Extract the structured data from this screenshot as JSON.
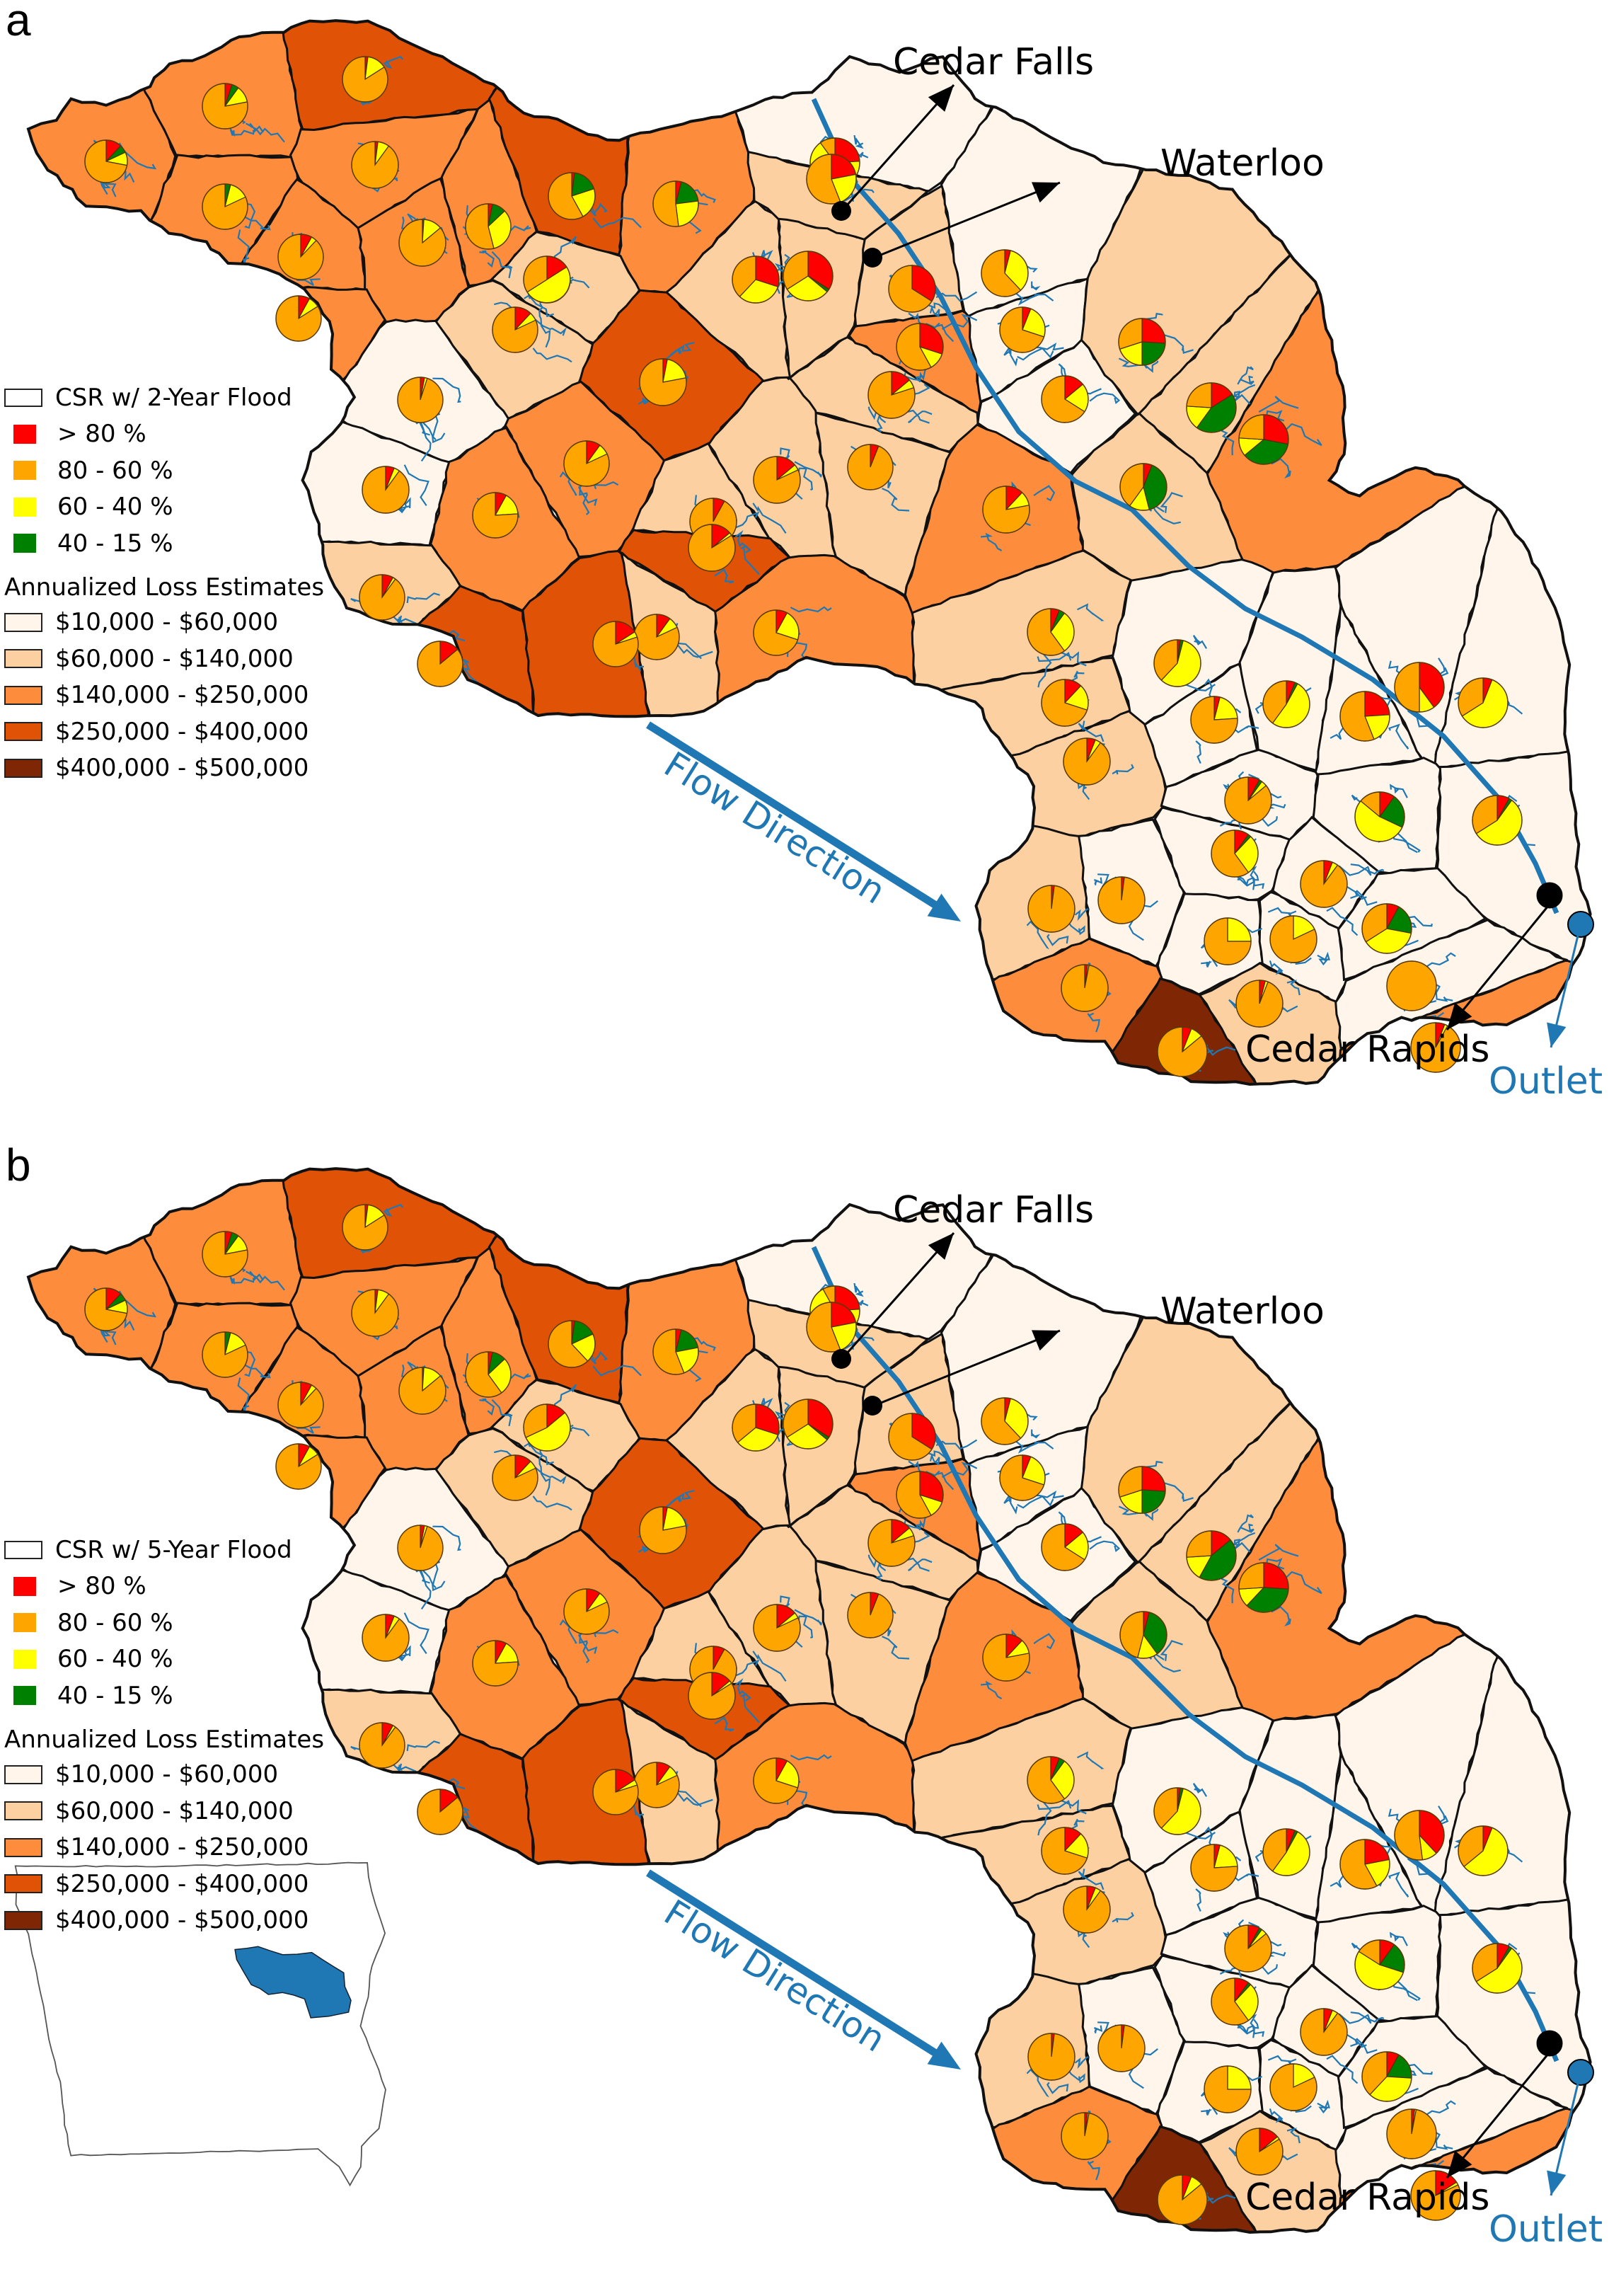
{
  "figure": {
    "colors": {
      "csr": {
        "gt80": "#ff0000",
        "80_60": "#ffa500",
        "60_40": "#ffff00",
        "40_15": "#008000"
      },
      "loss": [
        "#fff5eb",
        "#fdd0a2",
        "#fd8d3c",
        "#e05206",
        "#7f2704"
      ],
      "river": "#1f78b4",
      "outlet": "#1f78b4",
      "city": "#000000",
      "boundary": "#111111",
      "inset_basin": "#1f78b4"
    },
    "legend": {
      "csr_classes": [
        {
          "key": "gt80",
          "label": "> 80 %"
        },
        {
          "key": "80_60",
          "label": "80 - 60 %"
        },
        {
          "key": "60_40",
          "label": "60 - 40 %"
        },
        {
          "key": "40_15",
          "label": "40 - 15 %"
        }
      ],
      "loss_heading": "Annualized Loss Estimates",
      "loss_classes": [
        "$10,000 - $60,000",
        "$60,000 - $140,000",
        "$140,000 - $250,000",
        "$250,000 - $400,000",
        "$400,000 - $500,000"
      ]
    },
    "labels": {
      "cedar_falls": "Cedar Falls",
      "waterloo": "Waterloo",
      "cedar_rapids": "Cedar Rapids",
      "outlet": "Outlet",
      "flow_direction": "Flow Direction"
    },
    "panels": [
      {
        "letter": "a",
        "legend_title": "CSR w/ 2-Year Flood",
        "has_inset": false
      },
      {
        "letter": "b",
        "legend_title": "CSR w/ 5-Year Flood",
        "has_inset": true
      }
    ]
  },
  "subbasins": [
    {
      "id": 1,
      "loss": 2,
      "pie_a": [
        0.12,
        0.72,
        0.1,
        0.06
      ],
      "pie_b": [
        0.12,
        0.72,
        0.1,
        0.06
      ]
    },
    {
      "id": 2,
      "loss": 2,
      "pie_a": [
        0.05,
        0.78,
        0.12,
        0.05
      ],
      "pie_b": [
        0.05,
        0.78,
        0.12,
        0.05
      ]
    },
    {
      "id": 3,
      "loss": 3,
      "pie_a": [
        0.02,
        0.84,
        0.14,
        0.0
      ],
      "pie_b": [
        0.02,
        0.84,
        0.14,
        0.0
      ]
    },
    {
      "id": 4,
      "loss": 2,
      "pie_a": [
        0.0,
        0.82,
        0.14,
        0.04
      ],
      "pie_b": [
        0.0,
        0.82,
        0.14,
        0.04
      ]
    },
    {
      "id": 5,
      "loss": 2,
      "pie_a": [
        0.02,
        0.9,
        0.08,
        0.0
      ],
      "pie_b": [
        0.02,
        0.9,
        0.08,
        0.0
      ]
    },
    {
      "id": 6,
      "loss": 2,
      "pie_a": [
        0.03,
        0.54,
        0.33,
        0.1
      ],
      "pie_b": [
        0.03,
        0.6,
        0.27,
        0.1
      ]
    },
    {
      "id": 7,
      "loss": 3,
      "pie_a": [
        0.02,
        0.58,
        0.22,
        0.18
      ],
      "pie_b": [
        0.02,
        0.62,
        0.2,
        0.16
      ]
    },
    {
      "id": 8,
      "loss": 2,
      "pie_a": [
        0.04,
        0.52,
        0.25,
        0.19
      ],
      "pie_b": [
        0.04,
        0.56,
        0.22,
        0.18
      ]
    },
    {
      "id": 9,
      "loss": 2,
      "pie_a": [
        0.08,
        0.88,
        0.04,
        0.0
      ],
      "pie_b": [
        0.08,
        0.88,
        0.04,
        0.0
      ]
    },
    {
      "id": 10,
      "loss": 2,
      "pie_a": [
        0.0,
        0.86,
        0.13,
        0.01
      ],
      "pie_b": [
        0.0,
        0.86,
        0.13,
        0.01
      ]
    },
    {
      "id": 11,
      "loss": 2,
      "pie_a": [
        0.08,
        0.84,
        0.08,
        0.0
      ],
      "pie_b": [
        0.08,
        0.84,
        0.08,
        0.0
      ]
    },
    {
      "id": 12,
      "loss": 1,
      "pie_a": [
        0.16,
        0.34,
        0.5,
        0.0
      ],
      "pie_b": [
        0.14,
        0.32,
        0.54,
        0.0
      ]
    },
    {
      "id": 13,
      "loss": 1,
      "pie_a": [
        0.12,
        0.82,
        0.06,
        0.0
      ],
      "pie_b": [
        0.12,
        0.82,
        0.06,
        0.0
      ]
    },
    {
      "id": 14,
      "loss": 0,
      "pie_a": [
        0.03,
        0.95,
        0.02,
        0.0
      ],
      "pie_b": [
        0.03,
        0.95,
        0.02,
        0.0
      ]
    },
    {
      "id": 15,
      "loss": 3,
      "pie_a": [
        0.03,
        0.78,
        0.19,
        0.0
      ],
      "pie_b": [
        0.03,
        0.78,
        0.19,
        0.0
      ]
    },
    {
      "id": 16,
      "loss": 0,
      "pie_a": [
        0.06,
        0.9,
        0.04,
        0.0
      ],
      "pie_b": [
        0.06,
        0.9,
        0.04,
        0.0
      ]
    },
    {
      "id": 17,
      "loss": 2,
      "pie_a": [
        0.1,
        0.82,
        0.08,
        0.0
      ],
      "pie_b": [
        0.1,
        0.82,
        0.08,
        0.0
      ]
    },
    {
      "id": 18,
      "loss": 2,
      "pie_a": [
        0.08,
        0.76,
        0.16,
        0.0
      ],
      "pie_b": [
        0.08,
        0.76,
        0.16,
        0.0
      ]
    },
    {
      "id": 19,
      "loss": 1,
      "pie_a": [
        0.08,
        0.9,
        0.02,
        0.0
      ],
      "pie_b": [
        0.08,
        0.9,
        0.02,
        0.0
      ]
    },
    {
      "id": 20,
      "loss": 1,
      "pie_a": [
        0.14,
        0.8,
        0.06,
        0.0
      ],
      "pie_b": [
        0.14,
        0.8,
        0.06,
        0.0
      ]
    },
    {
      "id": 21,
      "loss": 1,
      "pie_a": [
        0.08,
        0.92,
        0.0,
        0.0
      ],
      "pie_b": [
        0.08,
        0.92,
        0.0,
        0.0
      ]
    },
    {
      "id": 22,
      "loss": 1,
      "pie_a": [
        0.1,
        0.82,
        0.08,
        0.0
      ],
      "pie_b": [
        0.1,
        0.82,
        0.08,
        0.0
      ]
    },
    {
      "id": 23,
      "loss": 3,
      "pie_a": [
        0.14,
        0.86,
        0.0,
        0.0
      ],
      "pie_b": [
        0.14,
        0.86,
        0.0,
        0.0
      ]
    },
    {
      "id": 24,
      "loss": 3,
      "pie_a": [
        0.16,
        0.8,
        0.04,
        0.0
      ],
      "pie_b": [
        0.16,
        0.8,
        0.04,
        0.0
      ]
    },
    {
      "id": 25,
      "loss": 1,
      "pie_a": [
        0.14,
        0.82,
        0.04,
        0.0
      ],
      "pie_b": [
        0.14,
        0.82,
        0.04,
        0.0
      ]
    },
    {
      "id": 26,
      "loss": 3,
      "pie_a": [
        0.14,
        0.84,
        0.02,
        0.0
      ],
      "pie_b": [
        0.14,
        0.84,
        0.02,
        0.0
      ]
    },
    {
      "id": 27,
      "loss": 2,
      "pie_a": [
        0.08,
        0.7,
        0.22,
        0.0
      ],
      "pie_b": [
        0.08,
        0.7,
        0.22,
        0.0
      ]
    },
    {
      "id": 28,
      "loss": 2,
      "pie_a": [
        0.3,
        0.58,
        0.12,
        0.0
      ],
      "pie_b": [
        0.3,
        0.58,
        0.12,
        0.0
      ]
    },
    {
      "id": 29,
      "loss": 1,
      "pie_a": [
        0.06,
        0.94,
        0.0,
        0.0
      ],
      "pie_b": [
        0.06,
        0.94,
        0.0,
        0.0
      ]
    },
    {
      "id": 30,
      "loss": 1,
      "pie_a": [
        0.34,
        0.34,
        0.3,
        0.02
      ],
      "pie_b": [
        0.34,
        0.34,
        0.3,
        0.02
      ]
    },
    {
      "id": 31,
      "loss": 1,
      "pie_a": [
        0.34,
        0.66,
        0.0,
        0.0
      ],
      "pie_b": [
        0.34,
        0.66,
        0.0,
        0.0
      ]
    },
    {
      "id": 32,
      "loss": 0,
      "pie_a": [
        0.04,
        0.62,
        0.34,
        0.0
      ],
      "pie_b": [
        0.04,
        0.62,
        0.34,
        0.0
      ]
    },
    {
      "id": 33,
      "loss": 0,
      "pie_a": [
        0.24,
        0.1,
        0.66,
        0.0
      ],
      "pie_b": [
        0.24,
        0.08,
        0.68,
        0.0
      ]
    },
    {
      "id": 34,
      "loss": 1,
      "pie_a": [
        0.3,
        0.38,
        0.32,
        0.0
      ],
      "pie_b": [
        0.3,
        0.36,
        0.34,
        0.0
      ]
    },
    {
      "id": 35,
      "loss": 1,
      "pie_a": [
        0.22,
        0.56,
        0.22,
        0.0
      ],
      "pie_b": [
        0.22,
        0.56,
        0.22,
        0.0
      ]
    },
    {
      "id": 36,
      "loss": 0,
      "pie_a": [
        0.06,
        0.7,
        0.24,
        0.0
      ],
      "pie_b": [
        0.06,
        0.7,
        0.24,
        0.0
      ]
    },
    {
      "id": 37,
      "loss": 0,
      "pie_a": [
        0.14,
        0.66,
        0.2,
        0.0
      ],
      "pie_b": [
        0.14,
        0.66,
        0.2,
        0.0
      ]
    },
    {
      "id": 38,
      "loss": 2,
      "pie_a": [
        0.12,
        0.78,
        0.1,
        0.0
      ],
      "pie_b": [
        0.12,
        0.78,
        0.1,
        0.0
      ]
    },
    {
      "id": 39,
      "loss": 1,
      "pie_a": [
        0.26,
        0.3,
        0.2,
        0.24
      ],
      "pie_b": [
        0.26,
        0.3,
        0.2,
        0.24
      ]
    },
    {
      "id": 40,
      "loss": 1,
      "pie_a": [
        0.16,
        0.24,
        0.16,
        0.44
      ],
      "pie_b": [
        0.14,
        0.26,
        0.16,
        0.44
      ]
    },
    {
      "id": 41,
      "loss": 2,
      "pie_a": [
        0.28,
        0.24,
        0.12,
        0.36
      ],
      "pie_b": [
        0.26,
        0.26,
        0.12,
        0.36
      ]
    },
    {
      "id": 42,
      "loss": 1,
      "pie_a": [
        0.06,
        0.4,
        0.14,
        0.4
      ],
      "pie_b": [
        0.04,
        0.46,
        0.14,
        0.36
      ]
    },
    {
      "id": 43,
      "loss": 1,
      "pie_a": [
        0.06,
        0.6,
        0.3,
        0.04
      ],
      "pie_b": [
        0.06,
        0.6,
        0.3,
        0.04
      ]
    },
    {
      "id": 44,
      "loss": 1,
      "pie_a": [
        0.12,
        0.7,
        0.18,
        0.0
      ],
      "pie_b": [
        0.12,
        0.7,
        0.18,
        0.0
      ]
    },
    {
      "id": 45,
      "loss": 1,
      "pie_a": [
        0.06,
        0.9,
        0.04,
        0.0
      ],
      "pie_b": [
        0.06,
        0.9,
        0.04,
        0.0
      ]
    },
    {
      "id": 46,
      "loss": 0,
      "pie_a": [
        0.02,
        0.38,
        0.58,
        0.02
      ],
      "pie_b": [
        0.02,
        0.38,
        0.58,
        0.02
      ]
    },
    {
      "id": 47,
      "loss": 0,
      "pie_a": [
        0.04,
        0.76,
        0.2,
        0.0
      ],
      "pie_b": [
        0.04,
        0.76,
        0.2,
        0.0
      ]
    },
    {
      "id": 48,
      "loss": 0,
      "pie_a": [
        0.08,
        0.86,
        0.04,
        0.02
      ],
      "pie_b": [
        0.08,
        0.86,
        0.04,
        0.02
      ]
    },
    {
      "id": 49,
      "loss": 0,
      "pie_a": [
        0.06,
        0.4,
        0.52,
        0.02
      ],
      "pie_b": [
        0.06,
        0.4,
        0.52,
        0.02
      ]
    },
    {
      "id": 50,
      "loss": 0,
      "pie_a": [
        0.24,
        0.56,
        0.2,
        0.0
      ],
      "pie_b": [
        0.22,
        0.58,
        0.2,
        0.0
      ]
    },
    {
      "id": 51,
      "loss": 0,
      "pie_a": [
        0.4,
        0.5,
        0.1,
        0.0
      ],
      "pie_b": [
        0.38,
        0.52,
        0.1,
        0.0
      ]
    },
    {
      "id": 52,
      "loss": 0,
      "pie_a": [
        0.06,
        0.34,
        0.6,
        0.0
      ],
      "pie_b": [
        0.06,
        0.36,
        0.58,
        0.0
      ]
    },
    {
      "id": 53,
      "loss": 0,
      "pie_a": [
        0.1,
        0.14,
        0.54,
        0.22
      ],
      "pie_b": [
        0.1,
        0.16,
        0.54,
        0.2
      ]
    },
    {
      "id": 54,
      "loss": 0,
      "pie_a": [
        0.08,
        0.34,
        0.56,
        0.02
      ],
      "pie_b": [
        0.08,
        0.34,
        0.56,
        0.02
      ]
    },
    {
      "id": 55,
      "loss": 0,
      "pie_a": [
        0.02,
        0.98,
        0.0,
        0.0
      ],
      "pie_b": [
        0.02,
        0.98,
        0.0,
        0.0
      ]
    },
    {
      "id": 56,
      "loss": 0,
      "pie_a": [
        0.1,
        0.6,
        0.28,
        0.02
      ],
      "pie_b": [
        0.1,
        0.6,
        0.28,
        0.02
      ]
    },
    {
      "id": 57,
      "loss": 0,
      "pie_a": [
        0.0,
        0.75,
        0.25,
        0.0
      ],
      "pie_b": [
        0.0,
        0.75,
        0.25,
        0.0
      ]
    },
    {
      "id": 58,
      "loss": 0,
      "pie_a": [
        0.0,
        0.82,
        0.18,
        0.0
      ],
      "pie_b": [
        0.0,
        0.82,
        0.18,
        0.0
      ]
    },
    {
      "id": 59,
      "loss": 0,
      "pie_a": [
        0.06,
        0.9,
        0.04,
        0.0
      ],
      "pie_b": [
        0.06,
        0.9,
        0.04,
        0.0
      ]
    },
    {
      "id": 60,
      "loss": 0,
      "pie_a": [
        0.08,
        0.34,
        0.38,
        0.2
      ],
      "pie_b": [
        0.08,
        0.38,
        0.36,
        0.18
      ]
    },
    {
      "id": 61,
      "loss": 1,
      "pie_a": [
        0.02,
        0.98,
        0.0,
        0.0
      ],
      "pie_b": [
        0.02,
        0.98,
        0.0,
        0.0
      ]
    },
    {
      "id": 62,
      "loss": 2,
      "pie_a": [
        0.02,
        0.97,
        0.01,
        0.0
      ],
      "pie_b": [
        0.02,
        0.97,
        0.01,
        0.0
      ]
    },
    {
      "id": 63,
      "loss": 4,
      "pie_a": [
        0.06,
        0.86,
        0.08,
        0.0
      ],
      "pie_b": [
        0.06,
        0.86,
        0.08,
        0.0
      ]
    },
    {
      "id": 64,
      "loss": 1,
      "pie_a": [
        0.04,
        0.94,
        0.02,
        0.0
      ],
      "pie_b": [
        0.14,
        0.84,
        0.02,
        0.0
      ]
    },
    {
      "id": 65,
      "loss": 0,
      "pie_a": [
        0.0,
        1.0,
        0.0,
        0.0
      ],
      "pie_b": [
        0.02,
        0.97,
        0.01,
        0.0
      ]
    },
    {
      "id": 66,
      "loss": 2,
      "pie_a": [
        0.06,
        0.92,
        0.02,
        0.0
      ],
      "pie_b": [
        0.16,
        0.82,
        0.02,
        0.0
      ]
    }
  ]
}
